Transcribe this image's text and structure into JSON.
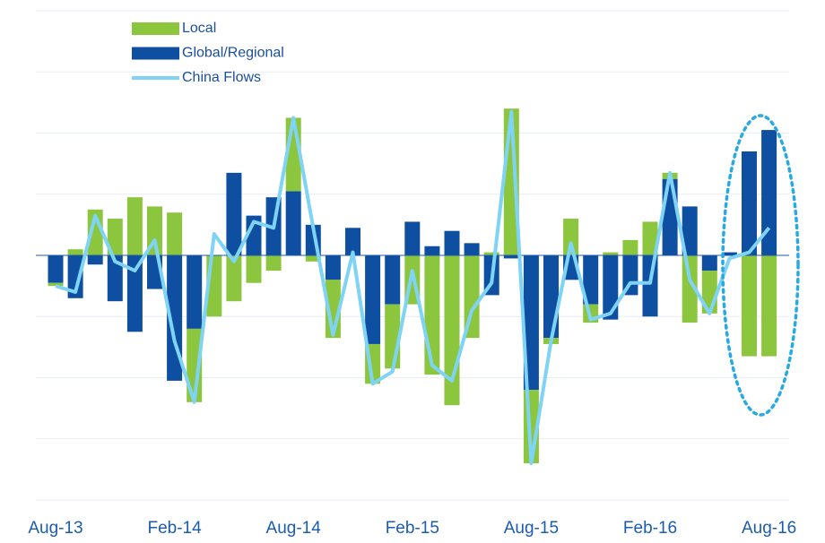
{
  "chart_data": {
    "type": "bar",
    "categories": [
      "Aug-13",
      null,
      null,
      null,
      null,
      null,
      "Feb-14",
      null,
      null,
      null,
      null,
      null,
      "Aug-14",
      null,
      null,
      null,
      null,
      null,
      "Feb-15",
      null,
      null,
      null,
      null,
      null,
      "Aug-15",
      null,
      null,
      null,
      null,
      null,
      "Feb-16",
      null,
      null,
      null,
      null,
      null,
      "Aug-16"
    ],
    "series": [
      {
        "name": "Local",
        "color": "#8cc63e",
        "kind": "bar",
        "values": [
          -0.05,
          0.1,
          0.75,
          0.6,
          0.95,
          0.8,
          0.7,
          -1.2,
          -1.0,
          -0.75,
          -0.45,
          -0.25,
          1.2,
          -0.1,
          -0.95,
          0,
          -0.65,
          -1.05,
          -0.8,
          -1.95,
          -2.45,
          -1.35,
          0.05,
          2.4,
          -1.2,
          -0.1,
          0.6,
          -0.3,
          0.05,
          0.25,
          0.55,
          0.1,
          -1.1,
          -0.7,
          0,
          -1.65,
          -1.65
        ]
      },
      {
        "name": "Global/Regional",
        "color": "#0e4fa2",
        "kind": "bar",
        "values": [
          -0.45,
          -0.7,
          -0.15,
          -0.75,
          -1.25,
          -0.55,
          -2.05,
          -1.2,
          0,
          1.35,
          0.65,
          0.95,
          1.05,
          0.5,
          -0.4,
          0.45,
          -1.45,
          -0.8,
          0.55,
          0.15,
          0.4,
          0.2,
          -0.65,
          -0.05,
          -2.2,
          -1.35,
          -0.4,
          -0.8,
          -1.05,
          -0.65,
          -1.0,
          1.25,
          0.8,
          -0.25,
          0.05,
          1.7,
          2.05
        ]
      },
      {
        "name": "China Flows",
        "color": "#7fd3f4",
        "kind": "line",
        "values": [
          -0.5,
          -0.6,
          0.65,
          -0.1,
          -0.25,
          0.25,
          -1.4,
          -2.4,
          0.35,
          -0.1,
          0.55,
          0.45,
          2.25,
          0.45,
          -1.3,
          0.05,
          -2.1,
          -1.9,
          -0.25,
          -1.8,
          -2.05,
          -0.9,
          -0.45,
          2.35,
          -3.4,
          -1.4,
          0.2,
          -1.05,
          -0.95,
          -0.45,
          -0.45,
          1.35,
          -0.4,
          -0.95,
          -0.05,
          0.05,
          0.45
        ]
      }
    ],
    "stack_order": [
      1,
      0
    ],
    "ylim": [
      -4,
      4
    ],
    "ygrid": [
      -4,
      -3,
      -2,
      -1,
      0,
      1,
      2,
      3,
      4
    ],
    "grid": true
  }
}
